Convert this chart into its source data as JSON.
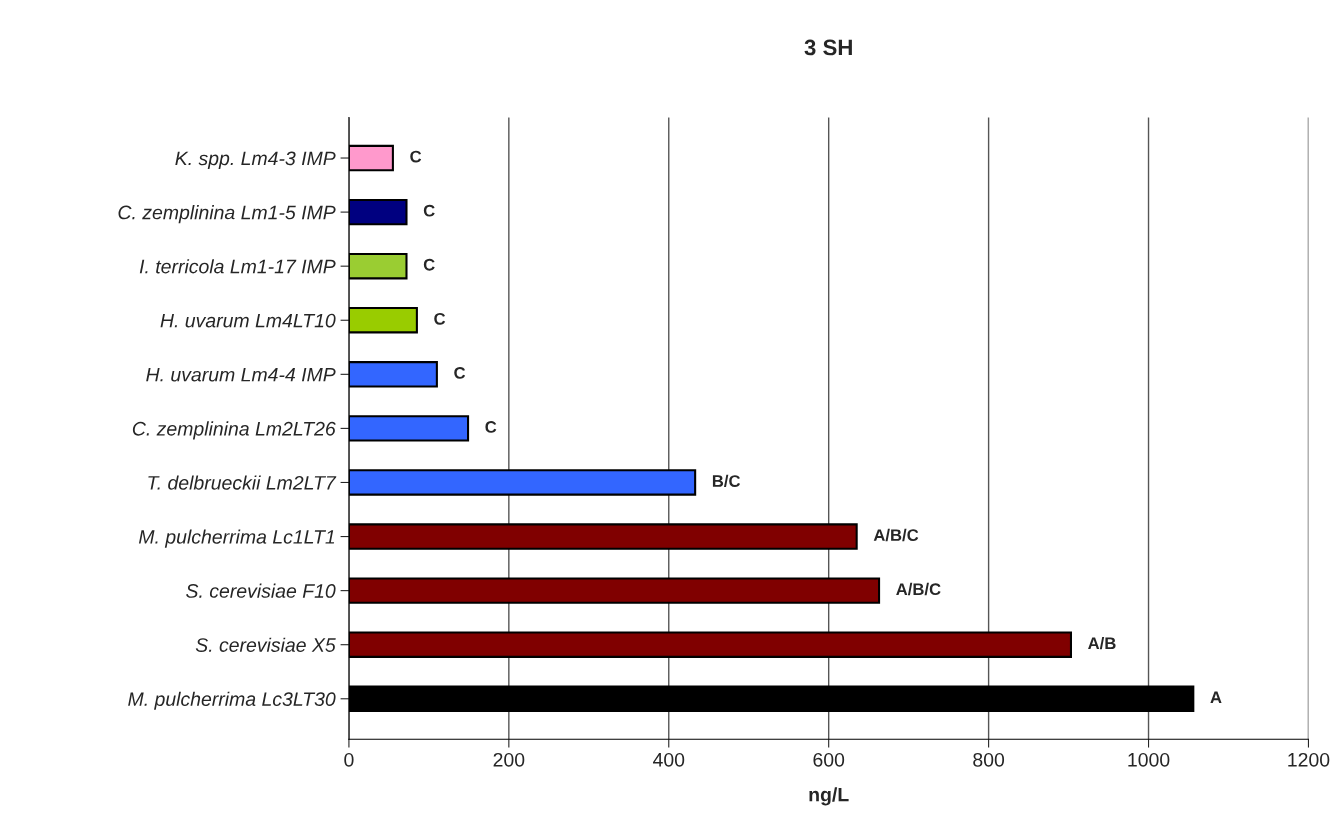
{
  "chart_data": {
    "type": "bar",
    "orientation": "horizontal",
    "title": "3 SH",
    "xlabel": "ng/L",
    "categories": [
      "K. spp. Lm4-3 IMP",
      "C. zemplinina Lm1-5 IMP",
      "I. terricola Lm1-17 IMP",
      "H. uvarum Lm4LT10",
      "H. uvarum Lm4-4 IMP",
      "C. zemplinina Lm2LT26",
      "T. delbrueckii Lm2LT7",
      "M. pulcherrima Lc1LT1",
      "S. cerevisiae F10",
      "S. cerevisiae X5",
      "M. pulcherrima Lc3LT30"
    ],
    "values": [
      55,
      72,
      72,
      85,
      110,
      149,
      433,
      635,
      663,
      903,
      1056
    ],
    "colors": [
      "#ff99cc",
      "#000080",
      "#9acd32",
      "#99cc00",
      "#3366ff",
      "#3366ff",
      "#3366ff",
      "#800000",
      "#800000",
      "#800000",
      "#000000"
    ],
    "value_labels": [
      "C",
      "C",
      "C",
      "C",
      "C",
      "C",
      "B/C",
      "A/B/C",
      "A/B/C",
      "A/B",
      "A"
    ],
    "xlim": [
      0,
      1200
    ],
    "xticks": [
      0,
      200,
      400,
      600,
      800,
      1000,
      1200
    ],
    "grid": "x",
    "legend": false
  }
}
